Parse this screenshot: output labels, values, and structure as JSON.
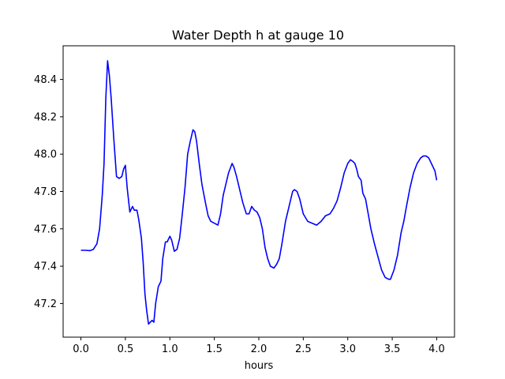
{
  "chart_data": {
    "type": "line",
    "title": "Water Depth h at gauge 10",
    "xlabel": "hours",
    "ylabel": "",
    "xlim": [
      -0.2,
      4.2
    ],
    "ylim": [
      47.02,
      48.58
    ],
    "xticks": [
      0.0,
      0.5,
      1.0,
      1.5,
      2.0,
      2.5,
      3.0,
      3.5,
      4.0
    ],
    "xtick_labels": [
      "0.0",
      "0.5",
      "1.0",
      "1.5",
      "2.0",
      "2.5",
      "3.0",
      "3.5",
      "4.0"
    ],
    "yticks": [
      47.2,
      47.4,
      47.6,
      47.8,
      48.0,
      48.2,
      48.4
    ],
    "ytick_labels": [
      "47.2",
      "47.4",
      "47.6",
      "47.8",
      "48.0",
      "48.2",
      "48.4"
    ],
    "grid": false,
    "series": [
      {
        "color": "#0000ff",
        "x": [
          0.0,
          0.05,
          0.1,
          0.14,
          0.18,
          0.21,
          0.24,
          0.26,
          0.28,
          0.3,
          0.32,
          0.34,
          0.37,
          0.4,
          0.43,
          0.46,
          0.48,
          0.5,
          0.52,
          0.55,
          0.58,
          0.6,
          0.63,
          0.65,
          0.68,
          0.7,
          0.72,
          0.74,
          0.76,
          0.78,
          0.8,
          0.82,
          0.84,
          0.87,
          0.9,
          0.92,
          0.95,
          0.97,
          1.0,
          1.02,
          1.05,
          1.08,
          1.11,
          1.14,
          1.17,
          1.2,
          1.23,
          1.26,
          1.28,
          1.3,
          1.33,
          1.36,
          1.4,
          1.43,
          1.46,
          1.5,
          1.54,
          1.57,
          1.6,
          1.63,
          1.66,
          1.7,
          1.72,
          1.75,
          1.78,
          1.82,
          1.86,
          1.89,
          1.92,
          1.95,
          1.98,
          2.01,
          2.04,
          2.07,
          2.1,
          2.13,
          2.17,
          2.2,
          2.23,
          2.26,
          2.3,
          2.34,
          2.38,
          2.4,
          2.43,
          2.46,
          2.5,
          2.55,
          2.6,
          2.65,
          2.7,
          2.75,
          2.8,
          2.84,
          2.88,
          2.92,
          2.96,
          3.0,
          3.03,
          3.06,
          3.08,
          3.1,
          3.12,
          3.15,
          3.17,
          3.2,
          3.23,
          3.26,
          3.3,
          3.34,
          3.38,
          3.42,
          3.46,
          3.48,
          3.52,
          3.56,
          3.6,
          3.63,
          3.66,
          3.7,
          3.74,
          3.78,
          3.82,
          3.85,
          3.88,
          3.91,
          3.95,
          3.98,
          4.0
        ],
        "y": [
          47.485,
          47.485,
          47.483,
          47.49,
          47.52,
          47.6,
          47.78,
          47.95,
          48.3,
          48.5,
          48.42,
          48.3,
          48.08,
          47.88,
          47.87,
          47.88,
          47.92,
          47.94,
          47.82,
          47.69,
          47.72,
          47.7,
          47.7,
          47.65,
          47.55,
          47.42,
          47.25,
          47.16,
          47.09,
          47.1,
          47.11,
          47.1,
          47.2,
          47.29,
          47.32,
          47.44,
          47.53,
          47.53,
          47.56,
          47.54,
          47.48,
          47.49,
          47.55,
          47.68,
          47.82,
          48.0,
          48.07,
          48.13,
          48.12,
          48.07,
          47.95,
          47.84,
          47.74,
          47.67,
          47.64,
          47.63,
          47.62,
          47.68,
          47.78,
          47.84,
          47.9,
          47.95,
          47.93,
          47.88,
          47.82,
          47.74,
          47.68,
          47.68,
          47.72,
          47.7,
          47.69,
          47.66,
          47.6,
          47.5,
          47.44,
          47.4,
          47.39,
          47.41,
          47.44,
          47.52,
          47.64,
          47.72,
          47.8,
          47.81,
          47.8,
          47.76,
          47.68,
          47.64,
          47.63,
          47.62,
          47.64,
          47.67,
          47.68,
          47.71,
          47.75,
          47.82,
          47.9,
          47.95,
          47.97,
          47.96,
          47.95,
          47.92,
          47.88,
          47.86,
          47.79,
          47.76,
          47.68,
          47.6,
          47.52,
          47.45,
          47.38,
          47.34,
          47.33,
          47.33,
          47.38,
          47.46,
          47.58,
          47.64,
          47.72,
          47.82,
          47.9,
          47.95,
          47.98,
          47.99,
          47.99,
          47.98,
          47.94,
          47.91,
          47.86
        ]
      }
    ]
  }
}
